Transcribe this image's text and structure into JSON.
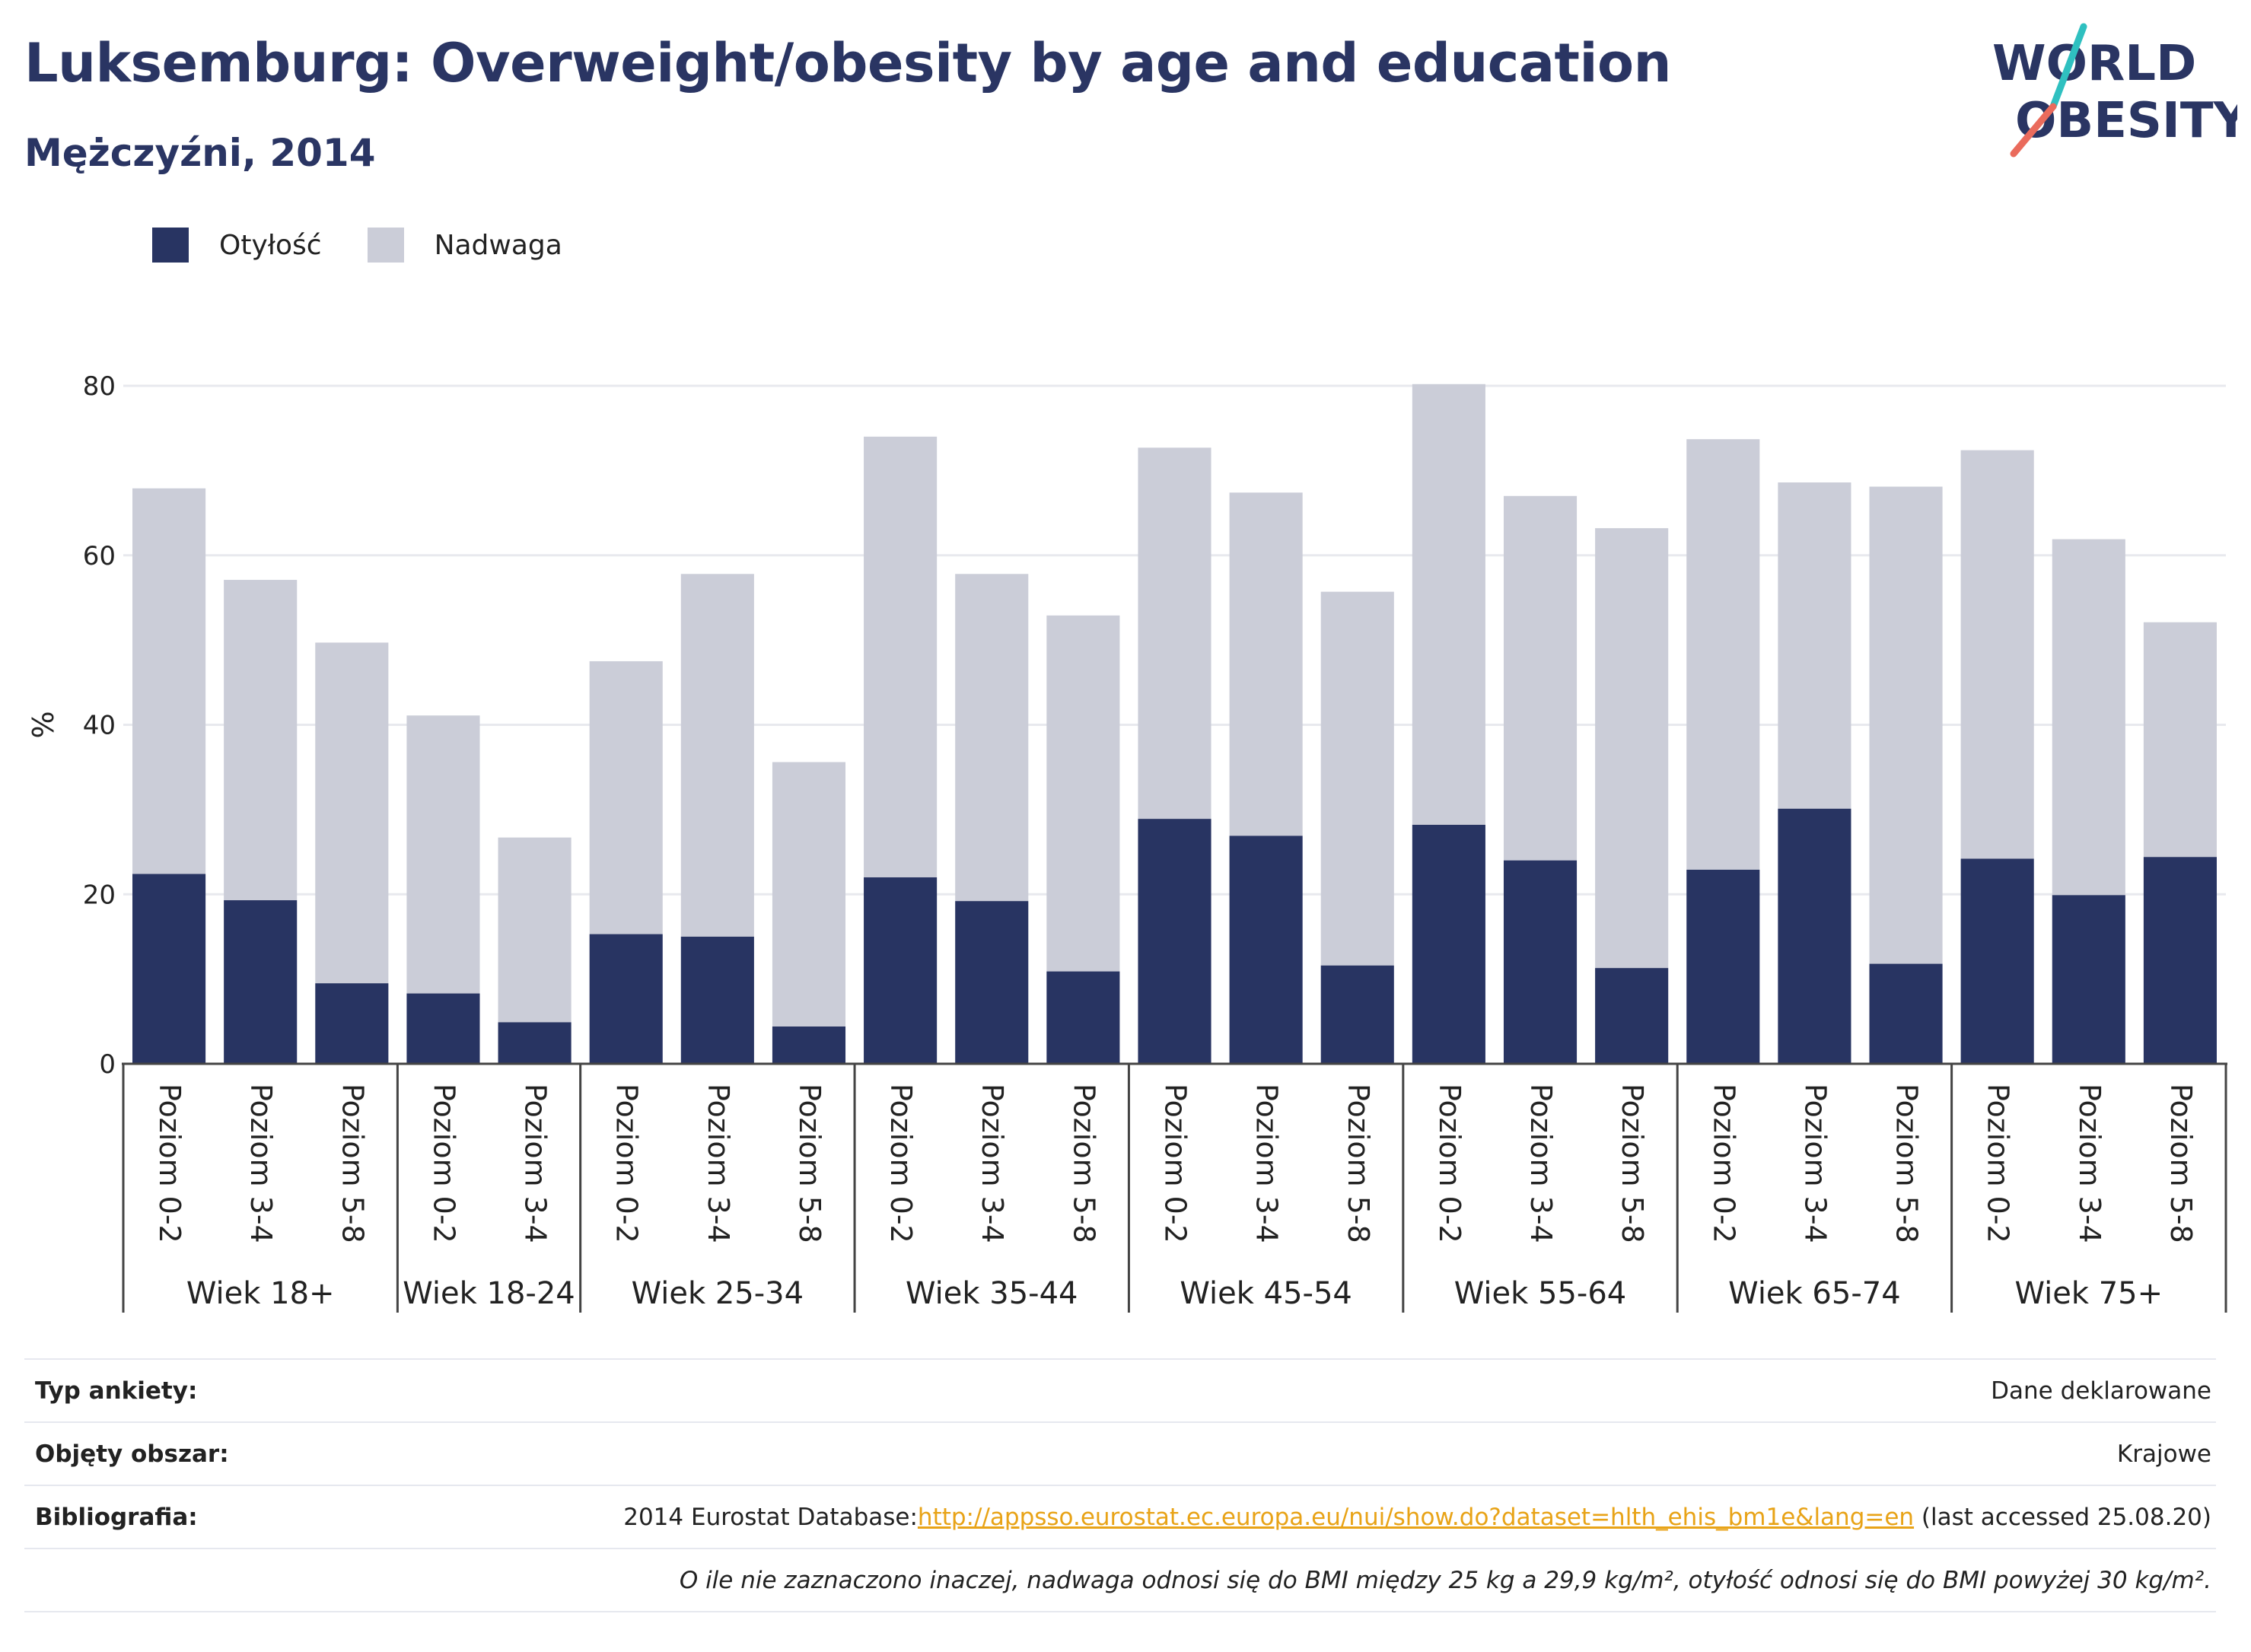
{
  "title": "Luksemburg: Overweight/obesity by age and education",
  "subtitle": "Mężczyźni, 2014",
  "logo": {
    "line1": "WORLD",
    "line2": "OBESITY"
  },
  "legend": [
    {
      "label": "Otyłość",
      "color": "#283462"
    },
    {
      "label": "Nadwaga",
      "color": "#cbcdd8"
    }
  ],
  "chart_data": {
    "type": "bar",
    "stacked": true,
    "ylabel": "%",
    "ylim": [
      0,
      80
    ],
    "yticks": [
      0,
      20,
      40,
      60,
      80
    ],
    "grid": true,
    "legend_position": "top-left",
    "groups": [
      {
        "label": "Wiek 18+",
        "categories": [
          "Poziom 0-2",
          "Poziom 3-4",
          "Poziom 5-8"
        ]
      },
      {
        "label": "Wiek 18-24",
        "categories": [
          "Poziom 0-2",
          "Poziom 3-4"
        ]
      },
      {
        "label": "Wiek 25-34",
        "categories": [
          "Poziom 0-2",
          "Poziom 3-4",
          "Poziom 5-8"
        ]
      },
      {
        "label": "Wiek 35-44",
        "categories": [
          "Poziom 0-2",
          "Poziom 3-4",
          "Poziom 5-8"
        ]
      },
      {
        "label": "Wiek 45-54",
        "categories": [
          "Poziom 0-2",
          "Poziom 3-4",
          "Poziom 5-8"
        ]
      },
      {
        "label": "Wiek 55-64",
        "categories": [
          "Poziom 0-2",
          "Poziom 3-4",
          "Poziom 5-8"
        ]
      },
      {
        "label": "Wiek 65-74",
        "categories": [
          "Poziom 0-2",
          "Poziom 3-4",
          "Poziom 5-8"
        ]
      },
      {
        "label": "Wiek 75+",
        "categories": [
          "Poziom 0-2",
          "Poziom 3-4",
          "Poziom 5-8"
        ]
      }
    ],
    "series": [
      {
        "name": "Otyłość",
        "color": "#283462",
        "values": [
          22.4,
          19.3,
          9.5,
          8.3,
          4.9,
          15.3,
          15.0,
          4.4,
          22.0,
          19.2,
          10.9,
          28.9,
          26.9,
          11.6,
          28.2,
          24.0,
          11.3,
          22.9,
          30.1,
          11.8,
          24.2,
          19.9,
          24.4
        ]
      },
      {
        "name": "Nadwaga",
        "color": "#cbcdd8",
        "values": [
          45.5,
          37.8,
          40.2,
          32.8,
          21.8,
          32.2,
          42.8,
          31.2,
          52.0,
          38.6,
          42.0,
          43.8,
          40.5,
          44.1,
          52.0,
          43.0,
          51.9,
          50.8,
          38.5,
          56.3,
          48.2,
          42.0,
          27.7
        ]
      }
    ]
  },
  "info": {
    "survey_type": {
      "label": "Typ ankiety:",
      "value": "Dane deklarowane"
    },
    "coverage": {
      "label": "Objęty obszar:",
      "value": "Krajowe"
    },
    "bibliography": {
      "label": "Bibliografia:",
      "prefix": "2014 Eurostat Database:",
      "link": "http://appsso.eurostat.ec.europa.eu/nui/show.do?dataset=hlth_ehis_bm1e&lang=en",
      "suffix": " (last accessed 25.08.20)"
    },
    "note": "O ile nie zaznaczono inaczej, nadwaga odnosi się do BMI między 25 kg a 29,9 kg/m², otyłość odnosi się do BMI powyżej 30 kg/m²."
  }
}
